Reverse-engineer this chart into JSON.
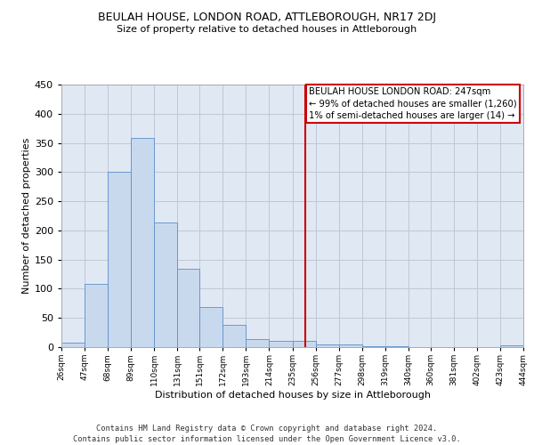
{
  "title": "BEULAH HOUSE, LONDON ROAD, ATTLEBOROUGH, NR17 2DJ",
  "subtitle": "Size of property relative to detached houses in Attleborough",
  "xlabel": "Distribution of detached houses by size in Attleborough",
  "ylabel": "Number of detached properties",
  "bar_edges": [
    26,
    47,
    68,
    89,
    110,
    131,
    151,
    172,
    193,
    214,
    235,
    256,
    277,
    298,
    319,
    340,
    360,
    381,
    402,
    423,
    444
  ],
  "bar_values": [
    7,
    108,
    300,
    358,
    213,
    135,
    68,
    38,
    13,
    10,
    10,
    5,
    5,
    2,
    1,
    0,
    0,
    0,
    0,
    3
  ],
  "bar_color": "#c9d9ed",
  "bar_edge_color": "#5b8fc9",
  "grid_color": "#c0c8d8",
  "background_color": "#e0e8f4",
  "vline_x": 247,
  "vline_color": "#cc0000",
  "annotation_box_text": "BEULAH HOUSE LONDON ROAD: 247sqm\n← 99% of detached houses are smaller (1,260)\n1% of semi-detached houses are larger (14) →",
  "ylim": [
    0,
    450
  ],
  "yticks": [
    0,
    50,
    100,
    150,
    200,
    250,
    300,
    350,
    400,
    450
  ],
  "footer_line1": "Contains HM Land Registry data © Crown copyright and database right 2024.",
  "footer_line2": "Contains public sector information licensed under the Open Government Licence v3.0.",
  "tick_labels": [
    "26sqm",
    "47sqm",
    "68sqm",
    "89sqm",
    "110sqm",
    "131sqm",
    "151sqm",
    "172sqm",
    "193sqm",
    "214sqm",
    "235sqm",
    "256sqm",
    "277sqm",
    "298sqm",
    "319sqm",
    "340sqm",
    "360sqm",
    "381sqm",
    "402sqm",
    "423sqm",
    "444sqm"
  ],
  "title_fontsize": 9,
  "subtitle_fontsize": 8,
  "ylabel_fontsize": 8,
  "xlabel_fontsize": 8
}
